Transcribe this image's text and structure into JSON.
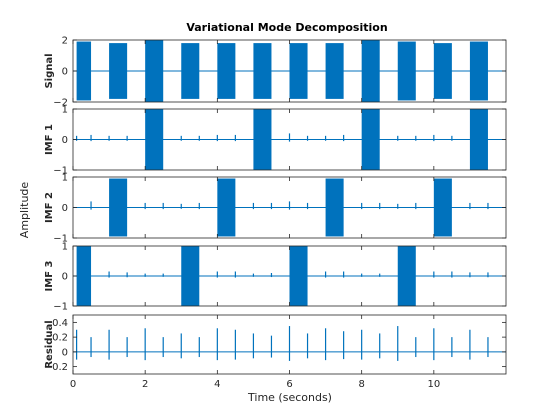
{
  "figure": {
    "title": "Variational Mode Decomposition",
    "common_ylabel": "Amplitude",
    "common_xlabel": "Time (seconds)",
    "color": "#0072BD"
  },
  "chart_data": [
    {
      "type": "line",
      "name": "Signal",
      "ylabel": "Signal",
      "xlim": [
        0,
        12
      ],
      "ylim": [
        -2,
        2
      ],
      "yticks": [
        -2,
        0,
        2
      ],
      "xtick_labels": false,
      "bursts": [
        {
          "start": 0.1,
          "end": 0.5,
          "amp": 1.9
        },
        {
          "start": 1.0,
          "end": 1.5,
          "amp": 1.8
        },
        {
          "start": 2.0,
          "end": 2.5,
          "amp": 2.0
        },
        {
          "start": 3.0,
          "end": 3.5,
          "amp": 1.8
        },
        {
          "start": 4.0,
          "end": 4.5,
          "amp": 1.8
        },
        {
          "start": 5.0,
          "end": 5.5,
          "amp": 1.8
        },
        {
          "start": 6.0,
          "end": 6.5,
          "amp": 1.8
        },
        {
          "start": 7.0,
          "end": 7.5,
          "amp": 1.8
        },
        {
          "start": 8.0,
          "end": 8.5,
          "amp": 2.0
        },
        {
          "start": 9.0,
          "end": 9.5,
          "amp": 1.9
        },
        {
          "start": 10.0,
          "end": 10.5,
          "amp": 1.8
        },
        {
          "start": 11.0,
          "end": 11.5,
          "amp": 1.9
        }
      ],
      "spikes": []
    },
    {
      "type": "line",
      "name": "IMF 1",
      "ylabel": "IMF 1",
      "xlim": [
        0,
        12
      ],
      "ylim": [
        -1,
        1
      ],
      "yticks": [
        -1,
        0,
        1
      ],
      "xtick_labels": false,
      "bursts": [
        {
          "start": 2.0,
          "end": 2.5,
          "amp": 1.0
        },
        {
          "start": 5.0,
          "end": 5.5,
          "amp": 1.0
        },
        {
          "start": 8.0,
          "end": 8.5,
          "amp": 1.0
        },
        {
          "start": 11.0,
          "end": 11.5,
          "amp": 1.0
        }
      ],
      "spikes": [
        {
          "t": 0.1,
          "amp": 0.12
        },
        {
          "t": 0.5,
          "amp": 0.15
        },
        {
          "t": 1.0,
          "amp": 0.12
        },
        {
          "t": 1.5,
          "amp": 0.12
        },
        {
          "t": 3.0,
          "amp": 0.12
        },
        {
          "t": 3.5,
          "amp": 0.12
        },
        {
          "t": 4.0,
          "amp": 0.15
        },
        {
          "t": 4.5,
          "amp": 0.15
        },
        {
          "t": 6.0,
          "amp": 0.2
        },
        {
          "t": 6.5,
          "amp": 0.12
        },
        {
          "t": 7.0,
          "amp": 0.12
        },
        {
          "t": 7.5,
          "amp": 0.15
        },
        {
          "t": 9.0,
          "amp": 0.12
        },
        {
          "t": 9.5,
          "amp": 0.12
        },
        {
          "t": 10.0,
          "amp": 0.15
        },
        {
          "t": 10.5,
          "amp": 0.12
        }
      ]
    },
    {
      "type": "line",
      "name": "IMF 2",
      "ylabel": "IMF 2",
      "xlim": [
        0,
        12
      ],
      "ylim": [
        -1,
        1
      ],
      "yticks": [
        -1,
        0,
        1
      ],
      "xtick_labels": false,
      "bursts": [
        {
          "start": 1.0,
          "end": 1.5,
          "amp": 0.95
        },
        {
          "start": 4.0,
          "end": 4.5,
          "amp": 0.95
        },
        {
          "start": 7.0,
          "end": 7.5,
          "amp": 0.95
        },
        {
          "start": 10.0,
          "end": 10.5,
          "amp": 0.95
        }
      ],
      "spikes": [
        {
          "t": 0.5,
          "amp": 0.2
        },
        {
          "t": 2.0,
          "amp": 0.15
        },
        {
          "t": 2.5,
          "amp": 0.15
        },
        {
          "t": 3.0,
          "amp": 0.12
        },
        {
          "t": 3.5,
          "amp": 0.15
        },
        {
          "t": 5.0,
          "amp": 0.15
        },
        {
          "t": 5.5,
          "amp": 0.15
        },
        {
          "t": 6.0,
          "amp": 0.2
        },
        {
          "t": 6.5,
          "amp": 0.15
        },
        {
          "t": 8.0,
          "amp": 0.15
        },
        {
          "t": 8.5,
          "amp": 0.15
        },
        {
          "t": 9.0,
          "amp": 0.12
        },
        {
          "t": 9.5,
          "amp": 0.15
        },
        {
          "t": 11.0,
          "amp": 0.15
        },
        {
          "t": 11.5,
          "amp": 0.15
        }
      ]
    },
    {
      "type": "line",
      "name": "IMF 3",
      "ylabel": "IMF 3",
      "xlim": [
        0,
        12
      ],
      "ylim": [
        -1,
        1
      ],
      "yticks": [
        -1,
        0,
        1
      ],
      "xtick_labels": false,
      "bursts": [
        {
          "start": 0.1,
          "end": 0.5,
          "amp": 1.0
        },
        {
          "start": 3.0,
          "end": 3.5,
          "amp": 1.0
        },
        {
          "start": 6.0,
          "end": 6.5,
          "amp": 1.0
        },
        {
          "start": 9.0,
          "end": 9.5,
          "amp": 1.0
        }
      ],
      "spikes": [
        {
          "t": 1.0,
          "amp": 0.15
        },
        {
          "t": 1.5,
          "amp": 0.12
        },
        {
          "t": 2.0,
          "amp": 0.08
        },
        {
          "t": 2.5,
          "amp": 0.08
        },
        {
          "t": 4.0,
          "amp": 0.15
        },
        {
          "t": 4.5,
          "amp": 0.15
        },
        {
          "t": 5.0,
          "amp": 0.08
        },
        {
          "t": 5.5,
          "amp": 0.1
        },
        {
          "t": 7.0,
          "amp": 0.15
        },
        {
          "t": 7.5,
          "amp": 0.15
        },
        {
          "t": 8.0,
          "amp": 0.08
        },
        {
          "t": 8.5,
          "amp": 0.08
        },
        {
          "t": 10.0,
          "amp": 0.15
        },
        {
          "t": 10.5,
          "amp": 0.15
        },
        {
          "t": 11.0,
          "amp": 0.12
        },
        {
          "t": 11.5,
          "amp": 0.12
        }
      ]
    },
    {
      "type": "line",
      "name": "Residual",
      "ylabel": "Residual",
      "xlim": [
        0,
        12
      ],
      "ylim": [
        -0.3,
        0.5
      ],
      "yticks": [
        -0.2,
        0,
        0.2,
        0.4
      ],
      "ytick_labels": [
        "-0.2",
        "0",
        "0.2",
        "0.4"
      ],
      "xticks": [
        0,
        2,
        4,
        6,
        8,
        10
      ],
      "xtick_labels": true,
      "bursts": [],
      "spikes": [
        {
          "t": 0.1,
          "amp": 0.3
        },
        {
          "t": 0.5,
          "amp": 0.2
        },
        {
          "t": 1.0,
          "amp": 0.3
        },
        {
          "t": 1.5,
          "amp": 0.2
        },
        {
          "t": 2.0,
          "amp": 0.32
        },
        {
          "t": 2.5,
          "amp": 0.2
        },
        {
          "t": 3.0,
          "amp": 0.25
        },
        {
          "t": 3.5,
          "amp": 0.2
        },
        {
          "t": 4.0,
          "amp": 0.32
        },
        {
          "t": 4.5,
          "amp": 0.3
        },
        {
          "t": 5.0,
          "amp": 0.25
        },
        {
          "t": 5.5,
          "amp": 0.22
        },
        {
          "t": 6.0,
          "amp": 0.35
        },
        {
          "t": 6.5,
          "amp": 0.25
        },
        {
          "t": 7.0,
          "amp": 0.32
        },
        {
          "t": 7.5,
          "amp": 0.28
        },
        {
          "t": 8.0,
          "amp": 0.3
        },
        {
          "t": 8.5,
          "amp": 0.25
        },
        {
          "t": 9.0,
          "amp": 0.35
        },
        {
          "t": 9.5,
          "amp": 0.2
        },
        {
          "t": 10.0,
          "amp": 0.32
        },
        {
          "t": 10.5,
          "amp": 0.2
        },
        {
          "t": 11.0,
          "amp": 0.3
        },
        {
          "t": 11.5,
          "amp": 0.2
        }
      ]
    }
  ]
}
